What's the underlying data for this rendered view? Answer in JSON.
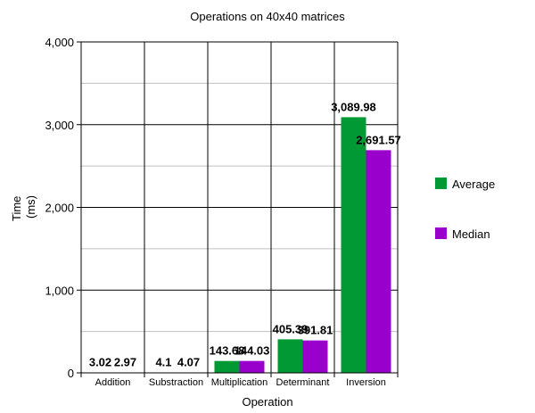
{
  "chart_data": {
    "type": "bar",
    "title": "Operations on 40x40 matrices",
    "xlabel": "Operation",
    "ylabel_lines": [
      "Time",
      "(ms)"
    ],
    "categories": [
      "Addition",
      "Substraction",
      "Multiplication",
      "Determinant",
      "Inversion"
    ],
    "series": [
      {
        "name": "Average",
        "color": "#009933",
        "values": [
          3.02,
          4.1,
          143.68,
          405.39,
          3089.98
        ],
        "labels": [
          "3.02",
          "4.1",
          "143.68",
          "405.39",
          "3,089.98"
        ]
      },
      {
        "name": "Median",
        "color": "#9900cc",
        "values": [
          2.97,
          4.07,
          144.03,
          391.81,
          2691.57
        ],
        "labels": [
          "2.97",
          "4.07",
          "144.03",
          "391.81",
          "2,691.57"
        ]
      }
    ],
    "ylim": [
      0,
      4000
    ],
    "yticks": [
      0,
      1000,
      2000,
      3000,
      4000
    ],
    "ytick_labels": [
      "0",
      "1,000",
      "2,000",
      "3,000",
      "4,000"
    ],
    "grid": true,
    "legend_position": "right"
  }
}
